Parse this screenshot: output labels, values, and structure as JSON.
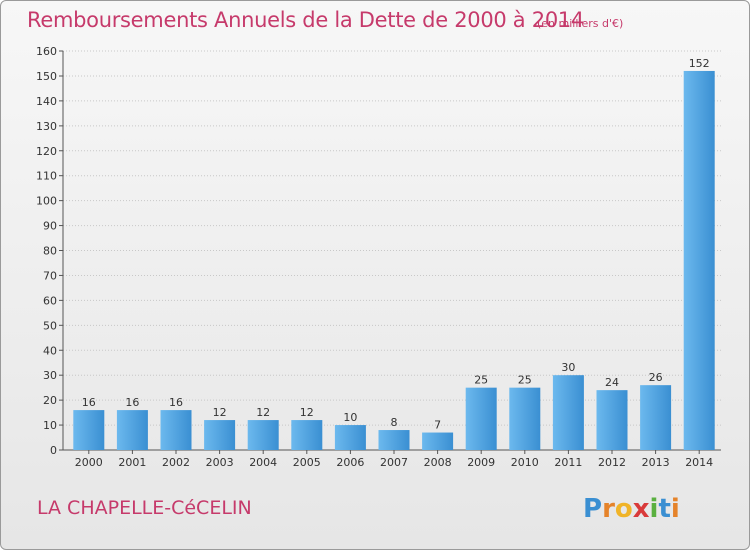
{
  "header": {
    "title": "Remboursements Annuels de la Dette de 2000 à 2014",
    "subtitle": "(en milliers d'€)"
  },
  "footer": {
    "commune": "LA CHAPELLE-CéCELIN",
    "logo_text": "Proxiti"
  },
  "colors": {
    "title": "#c63a6b",
    "bar_light": "#5aaee8",
    "bar_dark": "#2a7fc4",
    "grid": "#c8c8c8"
  },
  "chart_data": {
    "type": "bar",
    "title": "Remboursements Annuels de la Dette de 2000 à 2014",
    "subtitle": "(en milliers d'€)",
    "categories": [
      "2000",
      "2001",
      "2002",
      "2003",
      "2004",
      "2005",
      "2006",
      "2007",
      "2008",
      "2009",
      "2010",
      "2011",
      "2012",
      "2013",
      "2014"
    ],
    "values": [
      16,
      16,
      16,
      12,
      12,
      12,
      10,
      8,
      7,
      25,
      25,
      30,
      24,
      26,
      152
    ],
    "ylim": [
      0,
      160
    ],
    "ytick_step": 10,
    "grid": true,
    "legend": "none"
  }
}
